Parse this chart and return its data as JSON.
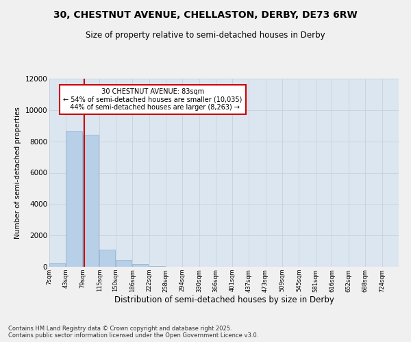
{
  "title_line1": "30, CHESTNUT AVENUE, CHELLASTON, DERBY, DE73 6RW",
  "title_line2": "Size of property relative to semi-detached houses in Derby",
  "xlabel": "Distribution of semi-detached houses by size in Derby",
  "ylabel": "Number of semi-detached properties",
  "bins": [
    "7sqm",
    "43sqm",
    "79sqm",
    "115sqm",
    "150sqm",
    "186sqm",
    "222sqm",
    "258sqm",
    "294sqm",
    "330sqm",
    "366sqm",
    "401sqm",
    "437sqm",
    "473sqm",
    "509sqm",
    "545sqm",
    "581sqm",
    "616sqm",
    "652sqm",
    "688sqm",
    "724sqm"
  ],
  "bin_edges": [
    7,
    43,
    79,
    115,
    150,
    186,
    222,
    258,
    294,
    330,
    366,
    401,
    437,
    473,
    509,
    545,
    581,
    616,
    652,
    688,
    724
  ],
  "bar_heights": [
    200,
    8650,
    8420,
    1100,
    420,
    160,
    30,
    10,
    5,
    3,
    2,
    1,
    1,
    0,
    0,
    0,
    0,
    0,
    0,
    0
  ],
  "bar_color": "#b8cfe8",
  "bar_edge_color": "#8aafd0",
  "grid_color": "#c8d0dc",
  "bg_color": "#dce6f0",
  "property_size": 83,
  "property_label": "30 CHESTNUT AVENUE: 83sqm",
  "pct_smaller": 54,
  "count_smaller": 10035,
  "pct_larger": 44,
  "count_larger": 8263,
  "vline_color": "#cc0000",
  "annotation_box_edge": "#cc0000",
  "ylim": [
    0,
    12000
  ],
  "yticks": [
    0,
    2000,
    4000,
    6000,
    8000,
    10000,
    12000
  ],
  "footer_line1": "Contains HM Land Registry data © Crown copyright and database right 2025.",
  "footer_line2": "Contains public sector information licensed under the Open Government Licence v3.0.",
  "fig_bg": "#f0f0f0"
}
